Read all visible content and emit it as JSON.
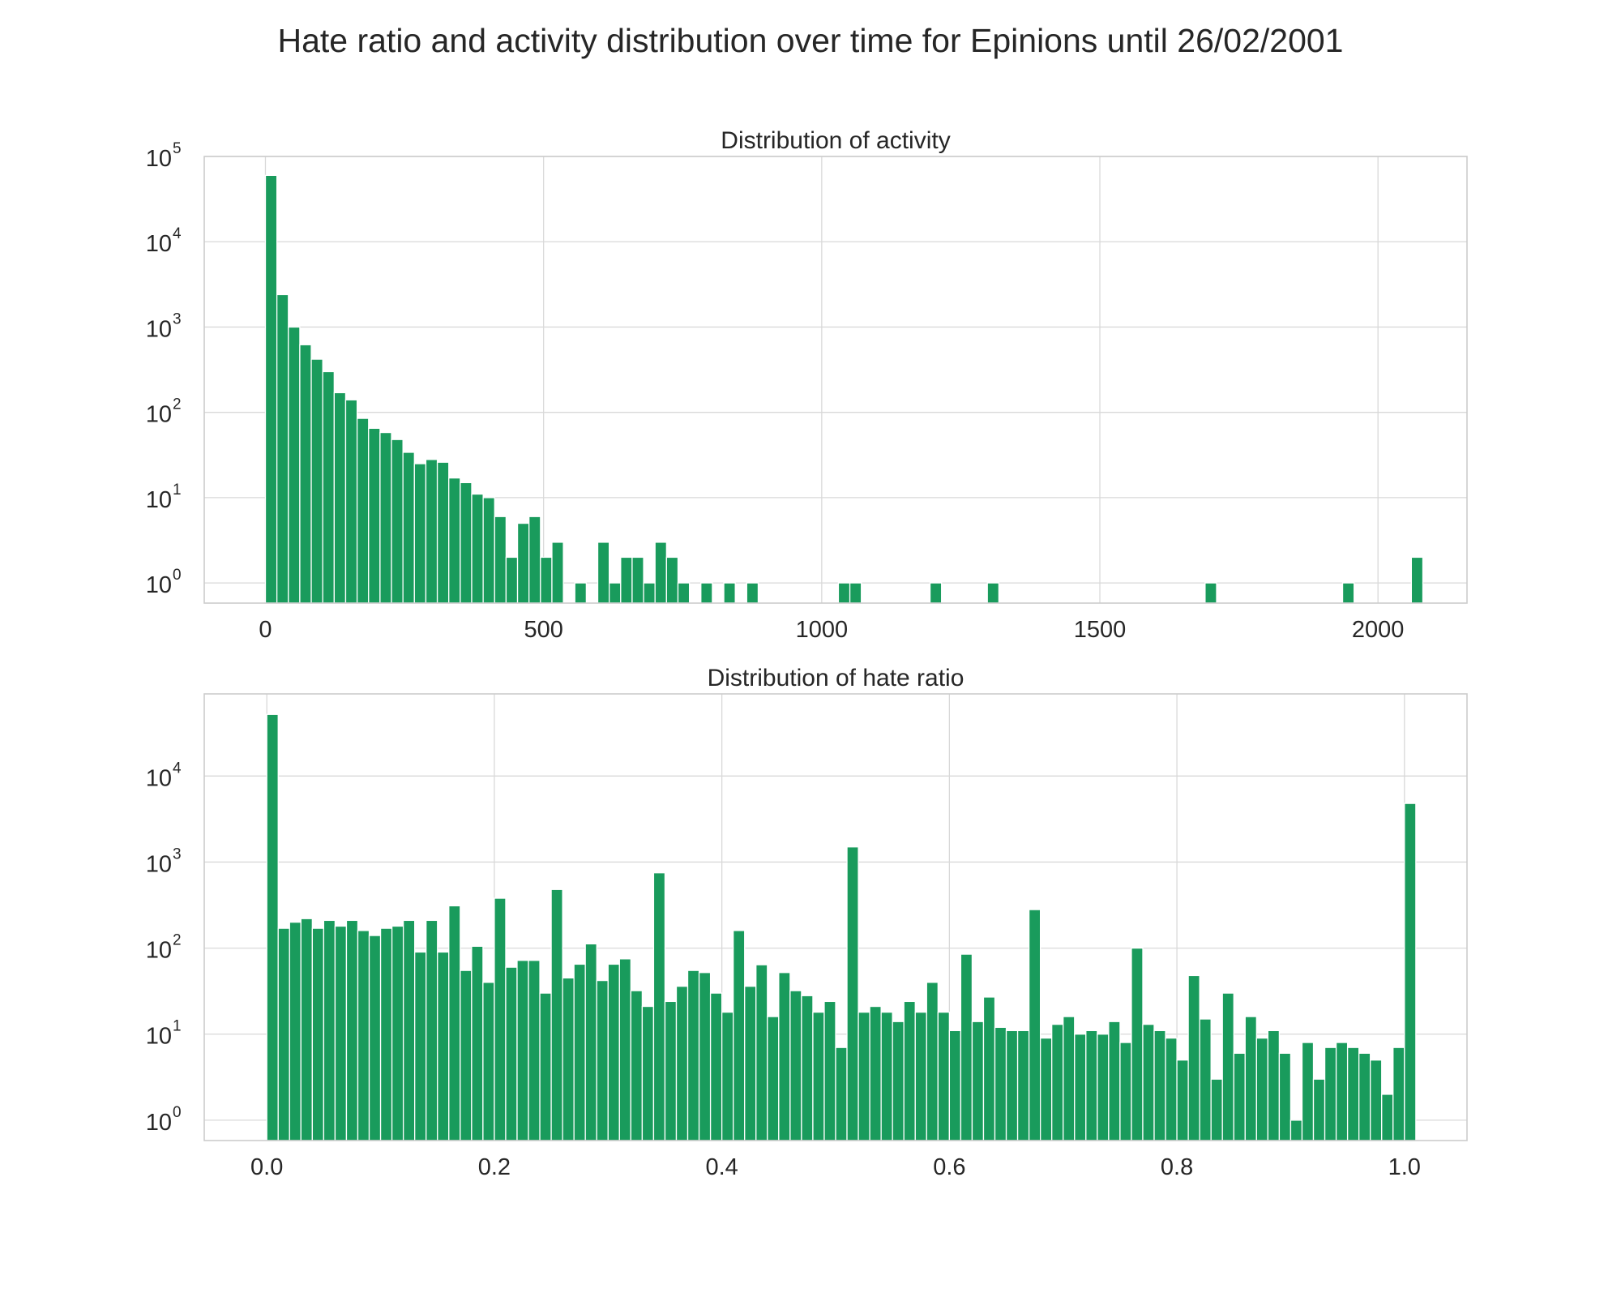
{
  "title": "Hate ratio and activity distribution over time for Epinions until 26/02/2001",
  "colors": {
    "bar": "#199b5c",
    "grid": "#d9d9d9",
    "frame": "#cccccc",
    "text": "#262626"
  },
  "chart_data": [
    {
      "type": "bar",
      "title": "Distribution of activity",
      "xlabel": "",
      "ylabel": "",
      "bin_width": 20.6,
      "x_start": 0,
      "xlim": [
        -110,
        2160
      ],
      "ylim": [
        0.58,
        100000
      ],
      "yscale": "log",
      "xticks": [
        0,
        500,
        1000,
        1500,
        2000
      ],
      "yticks": [
        1,
        10,
        100,
        1000,
        10000,
        100000
      ],
      "ytick_labels": [
        {
          "base": "10",
          "exp": "0"
        },
        {
          "base": "10",
          "exp": "1"
        },
        {
          "base": "10",
          "exp": "2"
        },
        {
          "base": "10",
          "exp": "3"
        },
        {
          "base": "10",
          "exp": "4"
        },
        {
          "base": "10",
          "exp": "5"
        }
      ],
      "grid": true,
      "values": [
        60000,
        2400,
        1000,
        620,
        420,
        300,
        170,
        140,
        85,
        65,
        58,
        48,
        34,
        25,
        28,
        26,
        17,
        15,
        11,
        10,
        6,
        2,
        5,
        6,
        2,
        3,
        0,
        1,
        0,
        3,
        1,
        2,
        2,
        1,
        3,
        2,
        1,
        0,
        1,
        0,
        1,
        0,
        1,
        0,
        0,
        0,
        0,
        0,
        0,
        0,
        1,
        1,
        0,
        0,
        0,
        0,
        0,
        0,
        1,
        0,
        0,
        0,
        0,
        1,
        0,
        0,
        0,
        0,
        0,
        0,
        0,
        0,
        0,
        0,
        0,
        0,
        0,
        0,
        0,
        0,
        0,
        0,
        1,
        0,
        0,
        0,
        0,
        0,
        0,
        0,
        0,
        0,
        0,
        0,
        1,
        0,
        0,
        0,
        0,
        0,
        2
      ]
    },
    {
      "type": "bar",
      "title": "Distribution of hate ratio",
      "xlabel": "",
      "ylabel": "",
      "bin_width": 0.01,
      "x_start": 0,
      "xlim": [
        -0.055,
        1.055
      ],
      "ylim": [
        0.58,
        90000
      ],
      "yscale": "log",
      "xticks": [
        0.0,
        0.2,
        0.4,
        0.6,
        0.8,
        1.0
      ],
      "xtick_labels": [
        "0.0",
        "0.2",
        "0.4",
        "0.6",
        "0.8",
        "1.0"
      ],
      "yticks": [
        1,
        10,
        100,
        1000,
        10000
      ],
      "ytick_labels": [
        {
          "base": "10",
          "exp": "0"
        },
        {
          "base": "10",
          "exp": "1"
        },
        {
          "base": "10",
          "exp": "2"
        },
        {
          "base": "10",
          "exp": "3"
        },
        {
          "base": "10",
          "exp": "4"
        }
      ],
      "grid": true,
      "values": [
        52000,
        170,
        200,
        220,
        170,
        210,
        180,
        210,
        160,
        140,
        170,
        180,
        210,
        90,
        210,
        90,
        310,
        55,
        105,
        40,
        380,
        60,
        72,
        72,
        30,
        480,
        45,
        65,
        112,
        42,
        65,
        75,
        32,
        21,
        750,
        24,
        36,
        55,
        52,
        30,
        18,
        160,
        36,
        64,
        16,
        52,
        32,
        28,
        18,
        24,
        7,
        1500,
        18,
        21,
        18,
        14,
        24,
        18,
        40,
        18,
        11,
        85,
        14,
        27,
        12,
        11,
        11,
        280,
        9,
        13,
        16,
        10,
        11,
        10,
        14,
        8,
        100,
        13,
        11,
        9,
        5,
        48,
        15,
        3,
        30,
        6,
        16,
        9,
        11,
        6,
        1,
        8,
        3,
        7,
        8,
        7,
        6,
        5,
        2,
        7,
        4800
      ]
    }
  ]
}
